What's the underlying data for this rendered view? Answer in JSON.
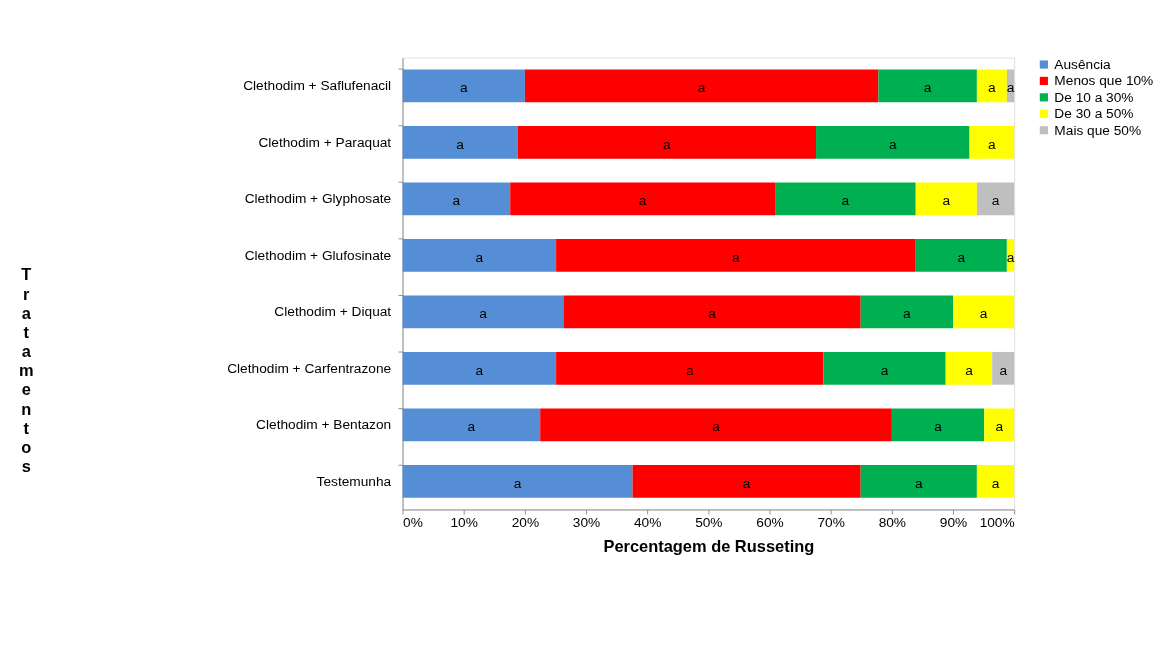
{
  "chart_data": {
    "type": "bar",
    "orientation": "horizontal",
    "stacked": true,
    "xlabel": "Percentagem de Russeting",
    "ylabel": "Tratamentos",
    "categories": [
      "Clethodim + Saflufenacil",
      "Clethodim + Paraquat",
      "Clethodim + Glyphosate",
      "Clethodim + Glufosinate",
      "Clethodim + Diquat",
      "Clethodim + Carfentrazone",
      "Clethodim + Bentazon",
      "Testemunha"
    ],
    "series": [
      {
        "name": "Ausência",
        "color": "#558ed5",
        "values": [
          20.0,
          18.8,
          17.6,
          25.1,
          26.3,
          25.1,
          22.5,
          37.6
        ],
        "value_labels": [
          "a",
          "a",
          "a",
          "a",
          "a",
          "a",
          "a",
          "a"
        ]
      },
      {
        "name": "Menos que 10%",
        "color": "#ff0000",
        "values": [
          57.8,
          48.8,
          43.3,
          58.8,
          48.6,
          43.7,
          57.5,
          37.3
        ],
        "value_labels": [
          "a",
          "a",
          "a",
          "a",
          "a",
          "a",
          "a",
          "a"
        ]
      },
      {
        "name": "De 10 a 30%",
        "color": "#00b050",
        "values": [
          16.1,
          25.1,
          23.0,
          14.9,
          15.1,
          20.0,
          15.1,
          19.0
        ],
        "value_labels": [
          "a",
          "a",
          "a",
          "a",
          "a",
          "a",
          "a",
          "a"
        ]
      },
      {
        "name": "De 30 a 50%",
        "color": "#ffff00",
        "values": [
          4.9,
          7.3,
          10.0,
          1.2,
          10.0,
          7.6,
          4.9,
          6.1
        ],
        "value_labels": [
          "a",
          "a",
          "a",
          "a",
          "a",
          "a",
          "a",
          "a"
        ]
      },
      {
        "name": "Mais que 50%",
        "color": "#bfbfbf",
        "values": [
          1.2,
          null,
          6.1,
          null,
          null,
          3.6,
          null,
          null
        ],
        "value_labels": [
          "a",
          null,
          "a",
          null,
          null,
          "a",
          null,
          null
        ]
      }
    ],
    "xlim": [
      0,
      100
    ],
    "xticks": [
      {
        "value": 0,
        "label": "0%"
      },
      {
        "value": 10,
        "label": "10%"
      },
      {
        "value": 20,
        "label": "20%"
      },
      {
        "value": 30,
        "label": "30%"
      },
      {
        "value": 40,
        "label": "40%"
      },
      {
        "value": 50,
        "label": "50%"
      },
      {
        "value": 60,
        "label": "60%"
      },
      {
        "value": 70,
        "label": "70%"
      },
      {
        "value": 80,
        "label": "80%"
      },
      {
        "value": 90,
        "label": "90%"
      },
      {
        "value": 100,
        "label": "100%"
      }
    ],
    "grid": false,
    "legend": "right"
  }
}
